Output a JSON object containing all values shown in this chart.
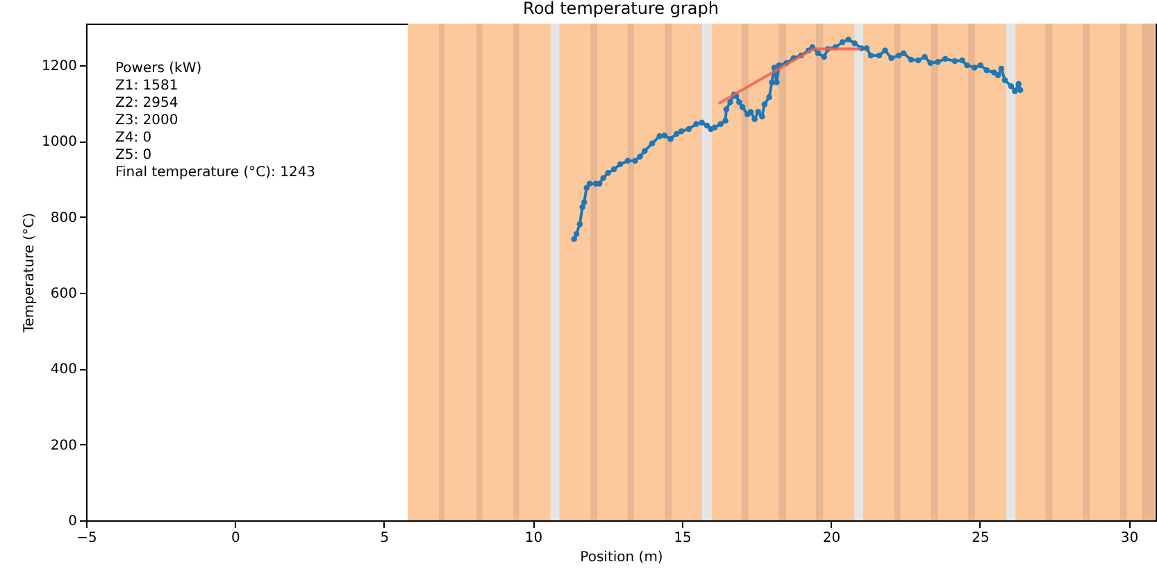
{
  "chart_data": {
    "type": "line",
    "title": "Rod temperature graph",
    "xlabel": "Position (m)",
    "ylabel": "Temperature (°C)",
    "xlim": [
      -5,
      30.9
    ],
    "ylim": [
      0,
      1310
    ],
    "xticks": [
      -5,
      0,
      5,
      10,
      15,
      20,
      25,
      30
    ],
    "yticks": [
      0,
      200,
      400,
      600,
      800,
      1000,
      1200
    ],
    "grid": false,
    "annotations": [
      "Powers (kW)",
      "Z1: 1581",
      "Z2: 2954",
      "Z3: 2000",
      "Z4: 0",
      "Z5: 0",
      "Final temperature (°C): 1243"
    ],
    "bands": [
      {
        "axis": "x",
        "from": 5.8,
        "to": 30.9,
        "color": "#fdc89b"
      },
      {
        "axis": "x",
        "from": 10.59,
        "to": 10.89,
        "color": "#e5e5e5"
      },
      {
        "axis": "x",
        "from": 15.67,
        "to": 16.0,
        "color": "#e5e5e5"
      },
      {
        "axis": "x",
        "from": 20.79,
        "to": 21.08,
        "color": "#e5e5e5"
      },
      {
        "axis": "x",
        "from": 25.89,
        "to": 26.2,
        "color": "#e5e5e5"
      },
      {
        "axis": "x",
        "from": 6.85,
        "to": 7.03,
        "color": "#e6b792"
      },
      {
        "axis": "x",
        "from": 8.1,
        "to": 8.3,
        "color": "#e6b792"
      },
      {
        "axis": "x",
        "from": 9.34,
        "to": 9.54,
        "color": "#e6b792"
      },
      {
        "axis": "x",
        "from": 11.93,
        "to": 12.16,
        "color": "#e6b792"
      },
      {
        "axis": "x",
        "from": 13.18,
        "to": 13.39,
        "color": "#e6b792"
      },
      {
        "axis": "x",
        "from": 14.43,
        "to": 14.66,
        "color": "#e6b792"
      },
      {
        "axis": "x",
        "from": 17.0,
        "to": 17.23,
        "color": "#e6b792"
      },
      {
        "axis": "x",
        "from": 18.25,
        "to": 18.5,
        "color": "#e6b792"
      },
      {
        "axis": "x",
        "from": 19.5,
        "to": 19.74,
        "color": "#e6b792"
      },
      {
        "axis": "x",
        "from": 22.13,
        "to": 22.34,
        "color": "#e6b792"
      },
      {
        "axis": "x",
        "from": 23.36,
        "to": 23.59,
        "color": "#e6b792"
      },
      {
        "axis": "x",
        "from": 24.61,
        "to": 24.84,
        "color": "#e6b792"
      },
      {
        "axis": "x",
        "from": 27.2,
        "to": 27.44,
        "color": "#e6b792"
      },
      {
        "axis": "x",
        "from": 28.46,
        "to": 28.69,
        "color": "#e6b792"
      },
      {
        "axis": "x",
        "from": 29.7,
        "to": 29.93,
        "color": "#e6b792"
      },
      {
        "axis": "x",
        "from": 30.44,
        "to": 30.85,
        "color": "#e6b792"
      }
    ],
    "series": [
      {
        "color": "#1f77b4",
        "marker": "circle",
        "x": [
          11.38,
          11.46,
          11.57,
          11.66,
          11.72,
          11.8,
          11.9,
          12.11,
          12.23,
          12.36,
          12.52,
          12.72,
          12.93,
          13.18,
          13.43,
          13.59,
          13.75,
          14.0,
          14.25,
          14.41,
          14.62,
          14.82,
          14.98,
          15.23,
          15.48,
          15.67,
          15.84,
          15.97,
          16.1,
          16.3,
          16.46,
          16.49,
          16.62,
          16.75,
          16.82,
          16.92,
          17.03,
          17.2,
          17.31,
          17.44,
          17.56,
          17.69,
          17.77,
          17.93,
          18.02,
          18.1,
          18.18,
          18.26,
          18.51,
          18.75,
          19.0,
          19.25,
          19.38,
          19.57,
          19.77,
          19.9,
          20.15,
          20.39,
          20.59,
          20.8,
          21.02,
          21.2,
          21.34,
          21.62,
          21.82,
          22.03,
          22.28,
          22.44,
          22.69,
          22.93,
          23.15,
          23.34,
          23.59,
          23.84,
          24.16,
          24.41,
          24.57,
          24.82,
          25.02,
          25.23,
          25.48,
          25.61,
          25.72,
          25.84,
          26.05,
          26.18,
          26.3,
          26.36
        ],
        "values": [
          742,
          755,
          781,
          826,
          839,
          877,
          888,
          888,
          888,
          903,
          916,
          926,
          939,
          948,
          948,
          959,
          974,
          994,
          1013,
          1015,
          1006,
          1019,
          1026,
          1032,
          1045,
          1049,
          1041,
          1032,
          1036,
          1045,
          1054,
          1084,
          1103,
          1123,
          1119,
          1103,
          1090,
          1071,
          1077,
          1058,
          1077,
          1065,
          1097,
          1116,
          1155,
          1194,
          1155,
          1200,
          1206,
          1219,
          1226,
          1239,
          1248,
          1232,
          1222,
          1243,
          1248,
          1261,
          1268,
          1258,
          1245,
          1245,
          1226,
          1226,
          1239,
          1219,
          1226,
          1232,
          1215,
          1213,
          1222,
          1206,
          1209,
          1217,
          1211,
          1213,
          1200,
          1194,
          1200,
          1187,
          1181,
          1174,
          1191,
          1161,
          1145,
          1132,
          1151,
          1135
        ]
      },
      {
        "color": "#f0604d",
        "marker": "none",
        "x": [
          16.23,
          19.41,
          21.02
        ],
        "values": [
          1099,
          1243,
          1243
        ]
      }
    ]
  }
}
